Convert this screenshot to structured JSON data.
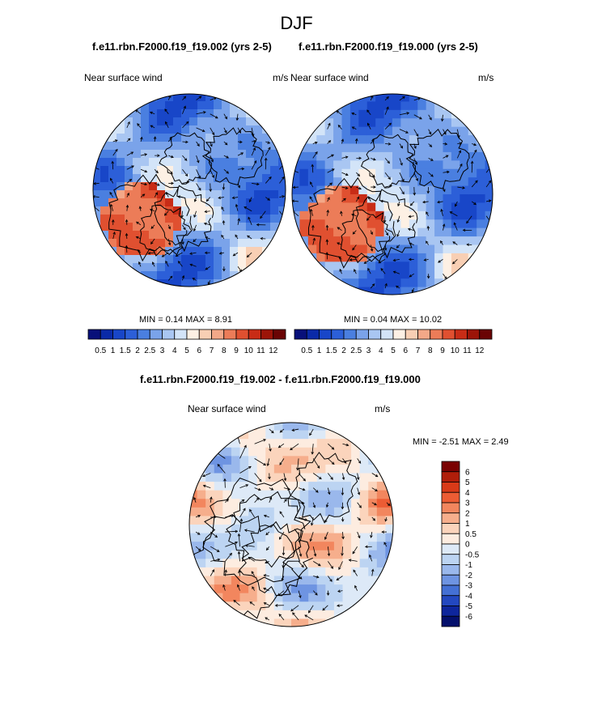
{
  "page": {
    "title": "DJF",
    "case_a": "f.e11.rbn.F2000.f19_f19.002 (yrs 2-5)",
    "case_b": "f.e11.rbn.F2000.f19_f19.000 (yrs 2-5)",
    "diff_title": "f.e11.rbn.F2000.f19_f19.002 - f.e11.rbn.F2000.f19_f19.000"
  },
  "chart_data": [
    {
      "type": "heatmap",
      "projection": "north-polar-stereographic",
      "variable": "Near surface wind",
      "units": "m/s",
      "stats_label": "MIN =  0.14 MAX =  8.91",
      "min": 0.14,
      "max": 8.91,
      "colorbar_labels": [
        "0.5",
        "1",
        "1.5",
        "2",
        "2.5",
        "3",
        "4",
        "5",
        "6",
        "7",
        "8",
        "9",
        "10",
        "11",
        "12"
      ],
      "levels": [
        0.5,
        1,
        1.5,
        2,
        2.5,
        3,
        4,
        5,
        6,
        7,
        8,
        9,
        10,
        11,
        12
      ],
      "colors": [
        "#08107a",
        "#0a2aa8",
        "#1846c8",
        "#2c5fd8",
        "#4a7fe0",
        "#7aa3ea",
        "#a9c6f2",
        "#d3e4f8",
        "#fdf0e4",
        "#f8cfb4",
        "#f3a888",
        "#ec7c58",
        "#e05030",
        "#c82c16",
        "#9c1408",
        "#6a0404"
      ]
    },
    {
      "type": "heatmap",
      "projection": "north-polar-stereographic",
      "variable": "Near surface wind",
      "units": "m/s",
      "stats_label": "MIN =  0.04 MAX =  10.02",
      "min": 0.04,
      "max": 10.02,
      "colorbar_labels": [
        "0.5",
        "1",
        "1.5",
        "2",
        "2.5",
        "3",
        "4",
        "5",
        "6",
        "7",
        "8",
        "9",
        "10",
        "11",
        "12"
      ],
      "levels": [
        0.5,
        1,
        1.5,
        2,
        2.5,
        3,
        4,
        5,
        6,
        7,
        8,
        9,
        10,
        11,
        12
      ],
      "colors": [
        "#08107a",
        "#0a2aa8",
        "#1846c8",
        "#2c5fd8",
        "#4a7fe0",
        "#7aa3ea",
        "#a9c6f2",
        "#d3e4f8",
        "#fdf0e4",
        "#f8cfb4",
        "#f3a888",
        "#ec7c58",
        "#e05030",
        "#c82c16",
        "#9c1408",
        "#6a0404"
      ]
    },
    {
      "type": "heatmap",
      "projection": "north-polar-stereographic",
      "variable": "Near surface wind",
      "units": "m/s",
      "stats_label": "MIN =  -2.51 MAX =  2.49",
      "min": -2.51,
      "max": 2.49,
      "colorbar_labels": [
        "6",
        "5",
        "4",
        "3",
        "2",
        "1",
        "0.5",
        "0",
        "-0.5",
        "-1",
        "-2",
        "-3",
        "-4",
        "-5",
        "-6"
      ],
      "colors": [
        "#7a0202",
        "#b01e0a",
        "#d83a18",
        "#ec5c34",
        "#f2865e",
        "#f6ae8c",
        "#fbd4bc",
        "#fdece0",
        "#dde9f7",
        "#bcd4f2",
        "#9ab8ec",
        "#6e94e2",
        "#4470d4",
        "#2348c0",
        "#0e269c",
        "#04106c"
      ]
    }
  ]
}
